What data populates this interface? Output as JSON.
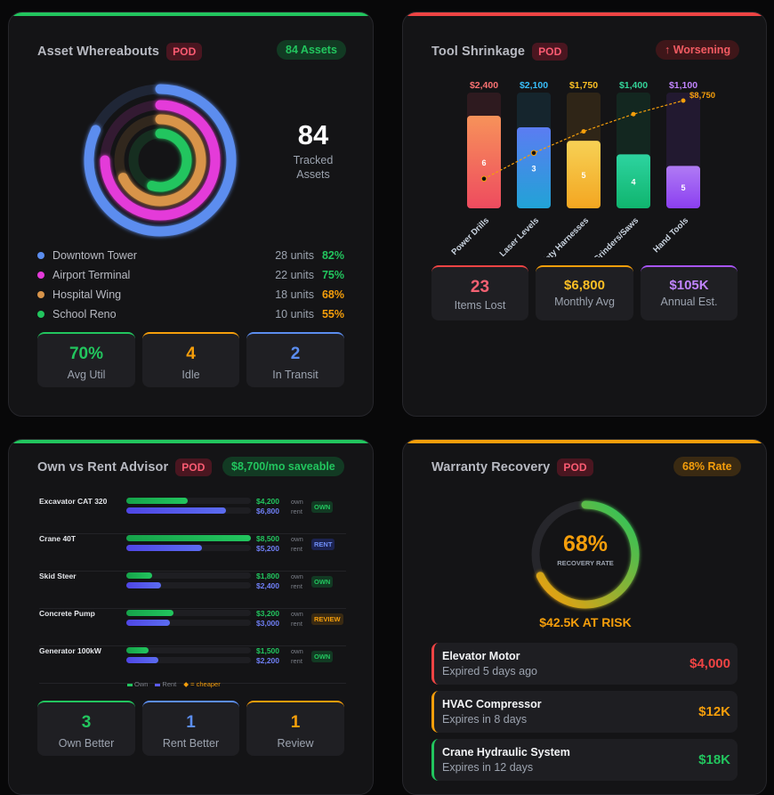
{
  "colors": {
    "green": "#22c55e",
    "red": "#ef4444",
    "orange": "#f59e0b",
    "blue": "#5b8def",
    "magenta": "#e43ad9",
    "tan": "#d8944a",
    "purple": "#a855f7",
    "indigo": "#5b5bf0"
  },
  "assets": {
    "title": "Asset Whereabouts",
    "pod": "POD",
    "badge": "84 Assets",
    "center_value": "84",
    "center_label_1": "Tracked",
    "center_label_2": "Assets",
    "rings": [
      {
        "color": "#5b8def",
        "fraction": 0.82
      },
      {
        "color": "#e43ad9",
        "fraction": 0.75
      },
      {
        "color": "#d8944a",
        "fraction": 0.68
      },
      {
        "color": "#22c55e",
        "fraction": 0.55
      }
    ],
    "legend": [
      {
        "name": "Downtown Tower",
        "units": "28 units",
        "pct": "82%",
        "color": "#5b8def",
        "pct_color": "#22c55e"
      },
      {
        "name": "Airport Terminal",
        "units": "22 units",
        "pct": "75%",
        "color": "#e43ad9",
        "pct_color": "#22c55e"
      },
      {
        "name": "Hospital Wing",
        "units": "18 units",
        "pct": "68%",
        "color": "#d8944a",
        "pct_color": "#f59e0b"
      },
      {
        "name": "School Reno",
        "units": "10 units",
        "pct": "55%",
        "color": "#22c55e",
        "pct_color": "#f59e0b"
      }
    ],
    "kpis": [
      {
        "value": "70%",
        "label": "Avg Util",
        "color": "#22c55e"
      },
      {
        "value": "4",
        "label": "Idle",
        "color": "#f59e0b"
      },
      {
        "value": "2",
        "label": "In Transit",
        "color": "#5b8def"
      }
    ]
  },
  "shrink": {
    "title": "Tool Shrinkage",
    "pod": "POD",
    "badge": "↑ Worsening",
    "cumulative_label": "$8,750",
    "kpis": [
      {
        "value": "23",
        "label": "Items Lost",
        "color": "#f26172",
        "top": "#ef4444"
      },
      {
        "value": "$6,800",
        "label": "Monthly Avg",
        "color": "#fbbf24",
        "top": "#f59e0b"
      },
      {
        "value": "$105K",
        "label": "Annual Est.",
        "color": "#c084fc",
        "top": "#a855f7"
      }
    ]
  },
  "chart_data": {
    "type": "bar",
    "categories": [
      "Power Drills",
      "Laser Levels",
      "Safety Harnesses",
      "Grinders/Saws",
      "Hand Tools"
    ],
    "values": [
      2400,
      2100,
      1750,
      1400,
      1100
    ],
    "value_labels": [
      "$2,400",
      "$2,100",
      "$1,750",
      "$1,400",
      "$1,100"
    ],
    "counts": [
      "6",
      "3",
      "5",
      "4",
      "5"
    ],
    "cumulative": [
      2400,
      4500,
      6250,
      7650,
      8750
    ],
    "ylim": [
      0,
      3000
    ],
    "colors": [
      [
        "#f7925a",
        "#ee4b5f"
      ],
      [
        "#5b7cf2",
        "#21a3d6"
      ],
      [
        "#f7d155",
        "#f3a621"
      ],
      [
        "#2dd4a0",
        "#10b46e"
      ],
      [
        "#b07bf5",
        "#8b3ff0"
      ]
    ],
    "label_colors": [
      "#f87171",
      "#38bdf8",
      "#fbbf24",
      "#34d399",
      "#c084fc"
    ]
  },
  "own": {
    "title": "Own vs Rent Advisor",
    "pod": "POD",
    "badge": "$8,700/mo saveable",
    "rows": [
      {
        "name": "Excavator CAT 320",
        "own": "$4,200",
        "rent": "$6,800",
        "own_frac": 0.49,
        "rent_frac": 0.8,
        "tag": "OWN"
      },
      {
        "name": "Crane 40T",
        "own": "$8,500",
        "rent": "$5,200",
        "own_frac": 1.0,
        "rent_frac": 0.61,
        "tag": "RENT"
      },
      {
        "name": "Skid Steer",
        "own": "$1,800",
        "rent": "$2,400",
        "own_frac": 0.21,
        "rent_frac": 0.28,
        "tag": "OWN"
      },
      {
        "name": "Concrete Pump",
        "own": "$3,200",
        "rent": "$3,000",
        "own_frac": 0.38,
        "rent_frac": 0.35,
        "tag": "REVIEW"
      },
      {
        "name": "Generator 100kW",
        "own": "$1,500",
        "rent": "$2,200",
        "own_frac": 0.18,
        "rent_frac": 0.26,
        "tag": "OWN"
      }
    ],
    "own_word": "own",
    "rent_word": "rent",
    "legend_own": "Own",
    "legend_rent": "Rent",
    "legend_cheaper": "= cheaper",
    "kpis": [
      {
        "value": "3",
        "label": "Own Better",
        "color": "#22c55e"
      },
      {
        "value": "1",
        "label": "Rent Better",
        "color": "#5b8def"
      },
      {
        "value": "1",
        "label": "Review",
        "color": "#f59e0b"
      }
    ]
  },
  "warranty": {
    "title": "Warranty Recovery",
    "pod": "POD",
    "badge": "68% Rate",
    "gauge_value": "68%",
    "gauge_fraction": 0.68,
    "gauge_label": "RECOVERY RATE",
    "at_risk": "$42.5K AT RISK",
    "items": [
      {
        "title": "Elevator Motor",
        "sub": "Expired 5 days ago",
        "amount": "$4,000",
        "color": "#ef4444"
      },
      {
        "title": "HVAC Compressor",
        "sub": "Expires in 8 days",
        "amount": "$12K",
        "color": "#f59e0b"
      },
      {
        "title": "Crane Hydraulic System",
        "sub": "Expires in 12 days",
        "amount": "$18K",
        "color": "#22c55e"
      }
    ]
  }
}
